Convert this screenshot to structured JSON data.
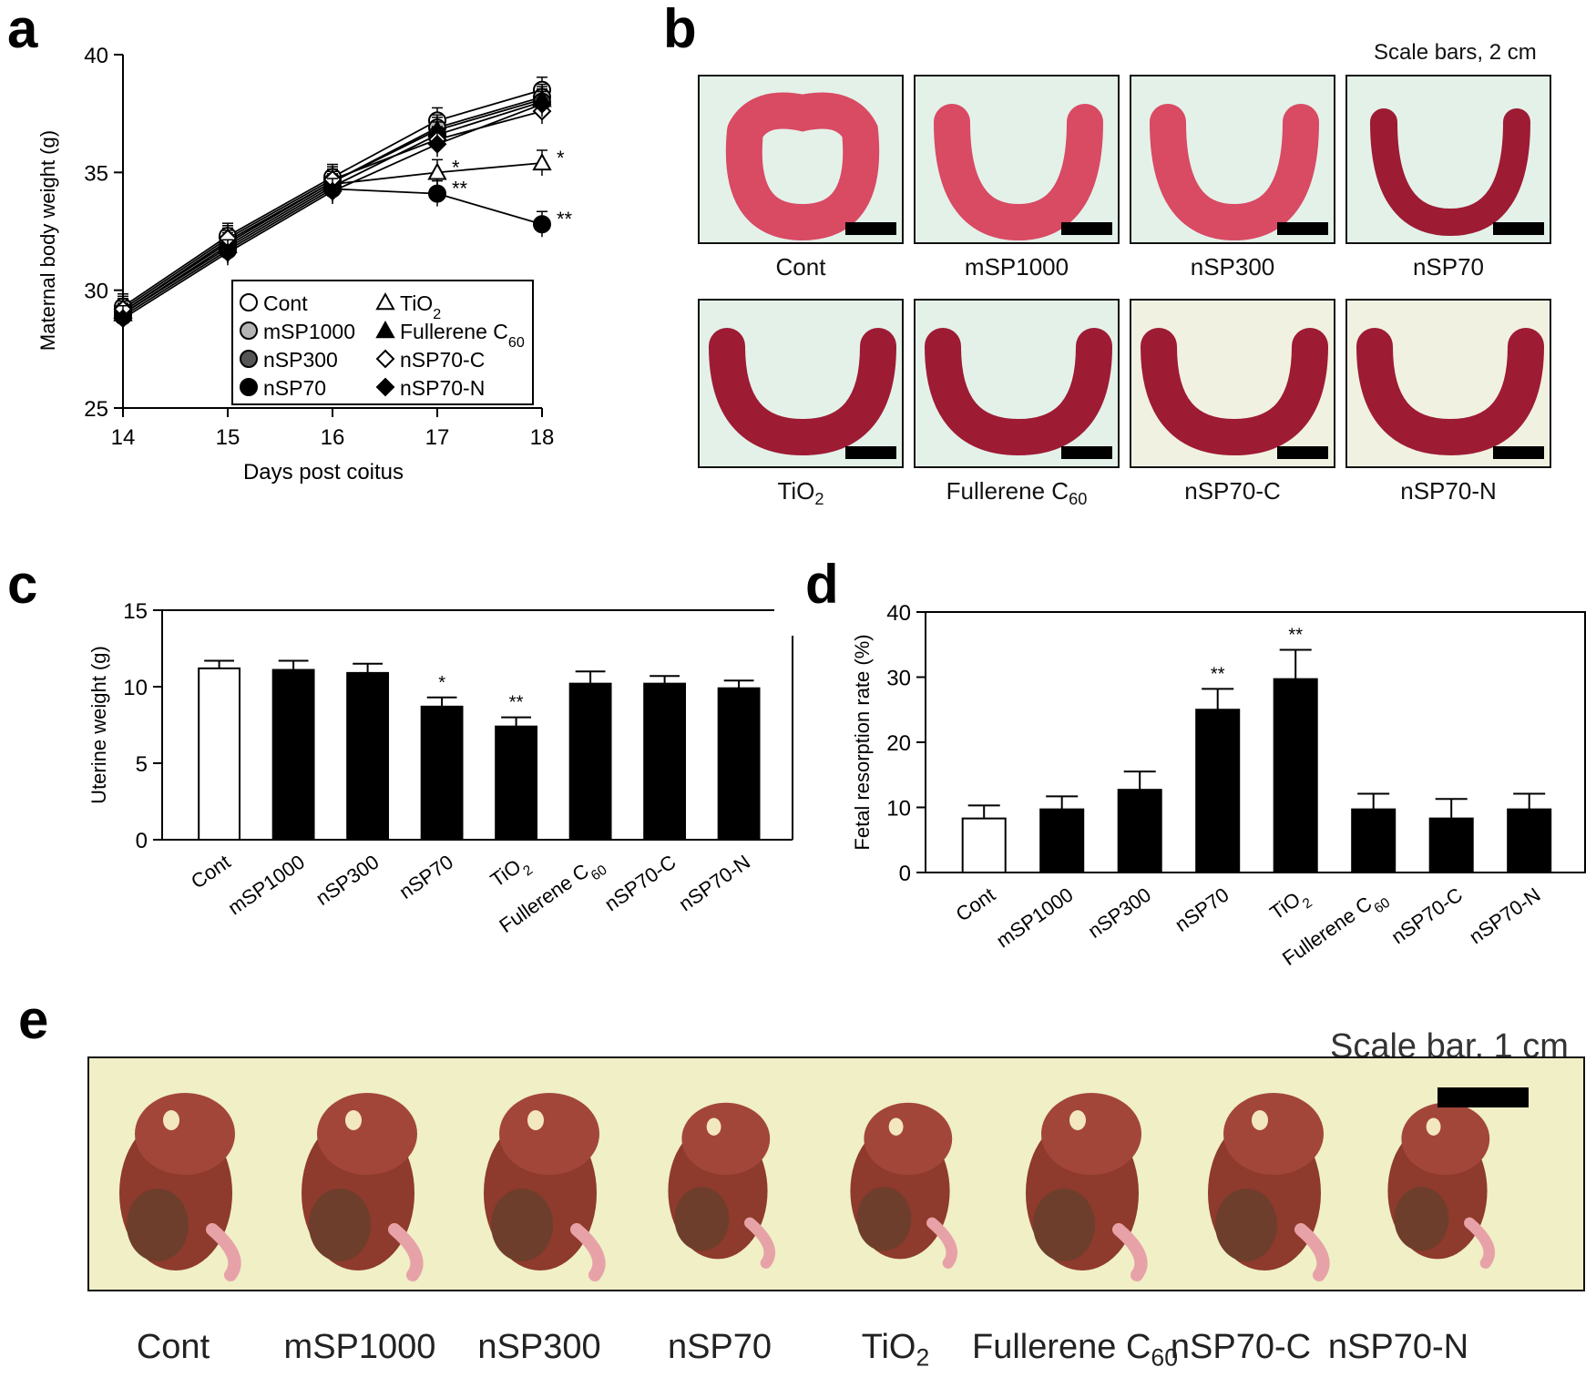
{
  "panel_letters": [
    "a",
    "b",
    "c",
    "d",
    "e"
  ],
  "chart_data": [
    {
      "id": "a",
      "type": "line",
      "xlabel": "Days post coitus",
      "ylabel": "Maternal body weight (g)",
      "x": [
        14,
        15,
        16,
        17,
        18
      ],
      "xlim": [
        14,
        18
      ],
      "ylim": [
        25,
        40
      ],
      "xticks": [
        "14",
        "15",
        "16",
        "17",
        "18"
      ],
      "yticks": [
        "25",
        "30",
        "35",
        "40"
      ],
      "series": [
        {
          "name": "Cont",
          "marker": "circle-open",
          "values": [
            29.3,
            32.3,
            34.8,
            37.2,
            38.5
          ]
        },
        {
          "name": "mSP1000",
          "marker": "circle-lightgray",
          "values": [
            29.1,
            32.0,
            34.6,
            36.9,
            38.2
          ]
        },
        {
          "name": "nSP300",
          "marker": "circle-gray",
          "values": [
            29.0,
            31.8,
            34.4,
            36.6,
            38.0
          ]
        },
        {
          "name": "nSP70",
          "marker": "circle-black",
          "values": [
            28.9,
            31.7,
            34.3,
            34.1,
            32.8
          ],
          "annotations": [
            "",
            "",
            "",
            "**",
            "**"
          ]
        },
        {
          "name": "TiO2",
          "marker": "triangle-open",
          "values": [
            29.0,
            31.9,
            34.5,
            35.0,
            35.4
          ],
          "annotations": [
            "",
            "",
            "",
            "*",
            "*"
          ]
        },
        {
          "name": "Fullerene C60",
          "marker": "triangle-black",
          "values": [
            29.1,
            32.1,
            34.6,
            36.8,
            38.1
          ]
        },
        {
          "name": "nSP70-C",
          "marker": "diamond-open",
          "values": [
            29.2,
            32.2,
            34.7,
            36.4,
            37.6
          ]
        },
        {
          "name": "nSP70-N",
          "marker": "diamond-black",
          "values": [
            28.8,
            31.6,
            34.2,
            36.2,
            37.9
          ]
        }
      ],
      "legend_labels": [
        "Cont",
        "mSP1000",
        "nSP300",
        "nSP70",
        "TiO",
        "Fullerene C",
        "nSP70-C",
        "nSP70-N"
      ],
      "legend_subscripts": [
        "",
        "",
        "",
        "",
        "2",
        "60",
        "",
        ""
      ]
    },
    {
      "id": "c",
      "type": "bar",
      "ylabel": "Uterine weight (g)",
      "ylim": [
        0,
        15
      ],
      "yticks": [
        "0",
        "5",
        "10",
        "15"
      ],
      "categories": [
        "Cont",
        "mSP1000",
        "nSP300",
        "nSP70",
        "TiO",
        "Fullerene C",
        "nSP70-C",
        "nSP70-N"
      ],
      "category_subscripts": [
        "",
        "",
        "",
        "",
        "2",
        "60",
        "",
        ""
      ],
      "values": [
        11.2,
        11.1,
        10.9,
        8.7,
        7.4,
        10.2,
        10.2,
        9.9
      ],
      "errors": [
        0.5,
        0.6,
        0.6,
        0.6,
        0.6,
        0.8,
        0.5,
        0.5
      ],
      "fills": [
        "#ffffff",
        "#000000",
        "#000000",
        "#000000",
        "#000000",
        "#000000",
        "#000000",
        "#000000"
      ],
      "annotations": [
        "",
        "",
        "",
        "*",
        "**",
        "",
        "",
        ""
      ]
    },
    {
      "id": "d",
      "type": "bar",
      "ylabel": "Fetal resorption rate (%)",
      "ylim": [
        0,
        40
      ],
      "yticks": [
        "0",
        "10",
        "20",
        "30",
        "40"
      ],
      "categories": [
        "Cont",
        "mSP1000",
        "nSP300",
        "nSP70",
        "TiO",
        "Fullerene C",
        "nSP70-C",
        "nSP70-N"
      ],
      "category_subscripts": [
        "",
        "",
        "",
        "",
        "2",
        "60",
        "",
        ""
      ],
      "values": [
        8.3,
        9.7,
        12.7,
        25.0,
        29.7,
        9.7,
        8.3,
        9.7
      ],
      "errors": [
        2.0,
        2.0,
        2.8,
        3.2,
        4.5,
        2.4,
        3.0,
        2.4
      ],
      "fills": [
        "#ffffff",
        "#000000",
        "#000000",
        "#000000",
        "#000000",
        "#000000",
        "#000000",
        "#000000"
      ],
      "annotations": [
        "",
        "",
        "",
        "**",
        "**",
        "",
        "",
        ""
      ]
    }
  ],
  "panel_b": {
    "scale_text": "Scale bars, 2 cm",
    "labels": [
      "Cont",
      "mSP1000",
      "nSP300",
      "nSP70",
      "TiO",
      "Fullerene C",
      "nSP70-C",
      "nSP70-N"
    ],
    "subscripts": [
      "",
      "",
      "",
      "",
      "2",
      "60",
      "",
      ""
    ]
  },
  "panel_e": {
    "scale_text": "Scale bar, 1 cm",
    "labels": [
      "Cont",
      "mSP1000",
      "nSP300",
      "nSP70",
      "TiO",
      "Fullerene C",
      "nSP70-C",
      "nSP70-N"
    ],
    "subscripts": [
      "",
      "",
      "",
      "",
      "2",
      "60",
      "",
      ""
    ]
  }
}
